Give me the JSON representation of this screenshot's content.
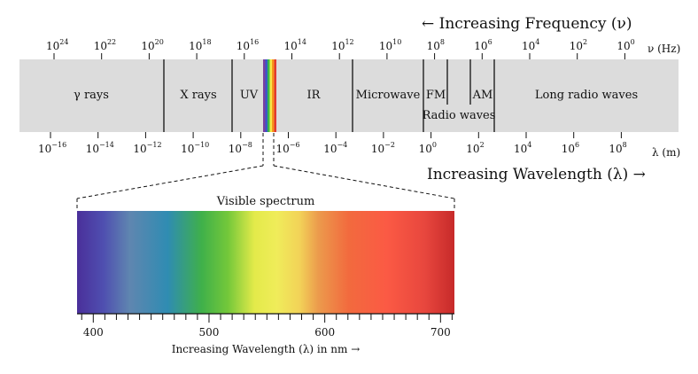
{
  "frequency_heading": "← Increasing Frequency (ν)",
  "wavelength_heading": "Increasing Wavelength (λ) →",
  "frequency_unit": "ν (Hz)",
  "wavelength_unit": "λ (m)",
  "frequency_ticks": [
    {
      "base": "10",
      "exp": "24"
    },
    {
      "base": "10",
      "exp": "22"
    },
    {
      "base": "10",
      "exp": "20"
    },
    {
      "base": "10",
      "exp": "18"
    },
    {
      "base": "10",
      "exp": "16"
    },
    {
      "base": "10",
      "exp": "14"
    },
    {
      "base": "10",
      "exp": "12"
    },
    {
      "base": "10",
      "exp": "10"
    },
    {
      "base": "10",
      "exp": "8"
    },
    {
      "base": "10",
      "exp": "6"
    },
    {
      "base": "10",
      "exp": "4"
    },
    {
      "base": "10",
      "exp": "2"
    },
    {
      "base": "10",
      "exp": "0"
    }
  ],
  "wavelength_ticks": [
    {
      "base": "10",
      "exp": "−16"
    },
    {
      "base": "10",
      "exp": "−14"
    },
    {
      "base": "10",
      "exp": "−12"
    },
    {
      "base": "10",
      "exp": "−10"
    },
    {
      "base": "10",
      "exp": "−8"
    },
    {
      "base": "10",
      "exp": "−6"
    },
    {
      "base": "10",
      "exp": "−4"
    },
    {
      "base": "10",
      "exp": "−2"
    },
    {
      "base": "10",
      "exp": "0"
    },
    {
      "base": "10",
      "exp": "2"
    },
    {
      "base": "10",
      "exp": "4"
    },
    {
      "base": "10",
      "exp": "6"
    },
    {
      "base": "10",
      "exp": "8"
    }
  ],
  "bands": [
    {
      "id": "gamma",
      "label": "γ rays"
    },
    {
      "id": "xray",
      "label": "X rays"
    },
    {
      "id": "uv",
      "label": "UV"
    },
    {
      "id": "ir",
      "label": "IR"
    },
    {
      "id": "microwave",
      "label": "Microwave"
    },
    {
      "id": "fm",
      "label": "FM"
    },
    {
      "id": "am",
      "label": "AM"
    },
    {
      "id": "longradio",
      "label": "Long radio waves"
    }
  ],
  "radio_waves_label": "Radio waves",
  "visible": {
    "title": "Visible spectrum",
    "axis_label": "Increasing Wavelength (λ) in nm →",
    "axis_range_nm": [
      386,
      712
    ],
    "tick_labels": [
      "400",
      "500",
      "600",
      "700"
    ],
    "colors": [
      "#4a2f9a",
      "#4f4fb0",
      "#5f86b0",
      "#2f8cb2",
      "#3fb04a",
      "#74c83a",
      "#e3ea4a",
      "#f0ec5a",
      "#f2d258",
      "#ec9a4c",
      "#f26a3e",
      "#fb5a44",
      "#e8473e",
      "#c72a2a"
    ]
  }
}
